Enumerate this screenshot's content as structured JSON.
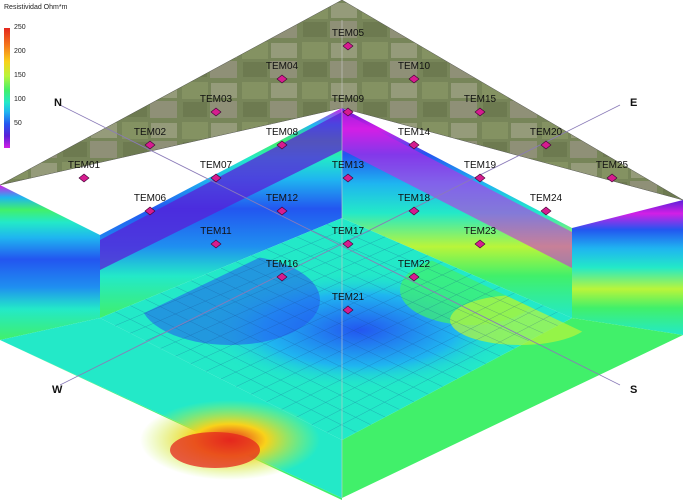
{
  "legend": {
    "title": "Resistividad Ohm*m",
    "ticks": [
      "250",
      "200",
      "150",
      "100",
      "50"
    ],
    "range": [
      10,
      250
    ],
    "colors": [
      "#d31fe6",
      "#5a1fd8",
      "#2356f0",
      "#1fb5f0",
      "#23e9c8",
      "#41f06a",
      "#b9f53a",
      "#f9d21a",
      "#f57a1c",
      "#e4271e"
    ]
  },
  "compass": {
    "north": "N",
    "east": "E",
    "south": "S",
    "west": "W"
  },
  "stations": [
    {
      "id": "TEM01",
      "row": 0,
      "col": 0
    },
    {
      "id": "TEM02",
      "row": 1,
      "col": 0
    },
    {
      "id": "TEM03",
      "row": 2,
      "col": 0
    },
    {
      "id": "TEM04",
      "row": 3,
      "col": 0
    },
    {
      "id": "TEM05",
      "row": 4,
      "col": 0
    },
    {
      "id": "TEM06",
      "row": 0,
      "col": 1
    },
    {
      "id": "TEM07",
      "row": 1,
      "col": 1
    },
    {
      "id": "TEM08",
      "row": 2,
      "col": 1
    },
    {
      "id": "TEM09",
      "row": 3,
      "col": 1
    },
    {
      "id": "TEM10",
      "row": 4,
      "col": 1
    },
    {
      "id": "TEM11",
      "row": 0,
      "col": 2
    },
    {
      "id": "TEM12",
      "row": 1,
      "col": 2
    },
    {
      "id": "TEM13",
      "row": 2,
      "col": 2
    },
    {
      "id": "TEM14",
      "row": 3,
      "col": 2
    },
    {
      "id": "TEM15",
      "row": 4,
      "col": 2
    },
    {
      "id": "TEM16",
      "row": 0,
      "col": 3
    },
    {
      "id": "TEM17",
      "row": 1,
      "col": 3
    },
    {
      "id": "TEM18",
      "row": 2,
      "col": 3
    },
    {
      "id": "TEM19",
      "row": 3,
      "col": 3
    },
    {
      "id": "TEM20",
      "row": 4,
      "col": 3
    },
    {
      "id": "TEM21",
      "row": 0,
      "col": 4
    },
    {
      "id": "TEM22",
      "row": 1,
      "col": 4
    },
    {
      "id": "TEM23",
      "row": 2,
      "col": 4
    },
    {
      "id": "TEM24",
      "row": 3,
      "col": 4
    },
    {
      "id": "TEM25",
      "row": 4,
      "col": 4
    }
  ]
}
